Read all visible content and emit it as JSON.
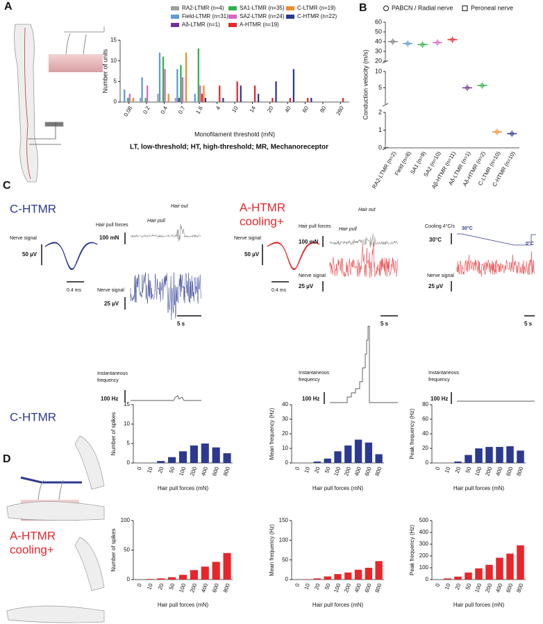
{
  "panel_letters": [
    "A",
    "B",
    "C",
    "D"
  ],
  "panel_a_note": "LT, low-threshold; HT, high-threshold; MR, Mechanoreceptor",
  "panel_c": {
    "c_htmr": {
      "title": [
        "C-HTMR"
      ],
      "nerve_signal": "Nerve signal",
      "amp_scale": "50 µV",
      "time_scale": "0.4 ms",
      "force_label": "Hair pull forces",
      "hair_pull": "Hair pull",
      "hair_out": "Hair out",
      "force_scale": "100 mN",
      "nerve_signal2": "Nerve signal",
      "signal_scale": "25 µV",
      "time_scale2": "5 s",
      "freq_label": [
        "Instantaneous",
        "frequency"
      ],
      "freq_scale": "100 Hz"
    },
    "a_htmr": {
      "title": [
        "A-HTMR",
        "cooling+"
      ],
      "nerve_signal": "Nerve signal",
      "amp_scale": "50 µV",
      "time_scale": "0.4 ms",
      "force_label": "Hair pull forces",
      "hair_pull": "Hair pull",
      "hair_out": "Hair out",
      "force_scale": "100 mN",
      "nerve_signal2": "Nerve signal",
      "signal_scale": "25 µV",
      "time_scale2": "5 s",
      "freq_label": [
        "Instantaneous",
        "frequency"
      ],
      "freq_scale": "100 Hz"
    },
    "cooling": {
      "label": "Cooling 4°C/s",
      "temp_scale": "30°C",
      "start": "30°C",
      "end": "0°C",
      "nerve_signal": "Nerve signal",
      "signal_scale": "25 µV",
      "time_scale": "5 s",
      "freq_label": [
        "Instantaneous",
        "frequency"
      ],
      "freq_scale": "100 Hz"
    }
  },
  "panel_d": {
    "row_labels": [
      [
        "C-HTMR"
      ],
      [
        "A-HTMR",
        "cooling+"
      ]
    ]
  },
  "chart_data": [
    {
      "type": "bar",
      "xlabel": "Monofilament threshold (mN)",
      "ylabel": "Number of units",
      "categories": [
        "0.08",
        "0.2",
        "0.4",
        "0.7",
        "1.6",
        "4",
        "10",
        "14",
        "20",
        "40",
        "60",
        "80",
        "260"
      ],
      "ylim": [
        0,
        15
      ],
      "yticks": [
        0,
        5,
        10,
        15
      ],
      "series": [
        {
          "name": "RA2-LTMR (n=4)",
          "color": "#a0a0a0",
          "values": [
            0,
            1,
            2,
            1,
            0,
            0,
            0,
            0,
            0,
            0,
            0,
            0,
            0
          ]
        },
        {
          "name": "Field-LTMR (n=31)",
          "color": "#5b9bd5",
          "values": [
            3,
            6,
            12,
            8,
            2,
            0,
            0,
            0,
            0,
            0,
            0,
            0,
            0
          ]
        },
        {
          "name": "Aδ-LTMR (n=1)",
          "color": "#7030a0",
          "values": [
            0,
            0,
            0,
            1,
            0,
            0,
            0,
            0,
            0,
            0,
            0,
            0,
            0
          ]
        },
        {
          "name": "SA1-LTMR (n=35)",
          "color": "#2db34a",
          "values": [
            1,
            1,
            11,
            9,
            13,
            0,
            0,
            0,
            0,
            0,
            0,
            0,
            0
          ]
        },
        {
          "name": "SA2-LTMR (n=24)",
          "color": "#d965c6",
          "values": [
            2,
            4,
            8,
            6,
            4,
            0,
            0,
            0,
            0,
            0,
            0,
            0,
            0
          ]
        },
        {
          "name": "A-HTMR (n=19)",
          "color": "#e8262a",
          "values": [
            0,
            0,
            0,
            0,
            2,
            4,
            5,
            4,
            1,
            1,
            1,
            0,
            1
          ]
        },
        {
          "name": "C-LTMR (n=19)",
          "color": "#f28c28",
          "values": [
            1,
            0,
            2,
            12,
            4,
            0,
            0,
            0,
            0,
            0,
            0,
            0,
            0
          ]
        },
        {
          "name": "C-HTMR (n=22)",
          "color": "#2b3990",
          "values": [
            0,
            0,
            0,
            0,
            1,
            1,
            4,
            2,
            5,
            8,
            1,
            0,
            0
          ]
        }
      ]
    },
    {
      "type": "dot",
      "ylabel": "Conduction velocity (m/s)",
      "legend": [
        "PABCN / Radial nerve",
        "Peroneal nerve"
      ],
      "categories": [
        "RA2-LTMR (n=2)",
        "Field (n=8)",
        "SA1 (n=9)",
        "SA2 (n=10)",
        "Aβ-HTMR (n=11)",
        "Aδ-LTMR (n=1)",
        "Aδ-HTMR (n=2)",
        "C-LTMR (n=10)",
        "C-HTMR (n=10)"
      ],
      "values": [
        40,
        38,
        37,
        39,
        42,
        5,
        5.7,
        0.9,
        0.8
      ],
      "colors": [
        "#808080",
        "#5b9bd5",
        "#2db34a",
        "#d965c6",
        "#e8262a",
        "#7030a0",
        "#2db34a",
        "#f28c28",
        "#2b3990"
      ],
      "category_segment": [
        0,
        0,
        0,
        0,
        0,
        1,
        1,
        2,
        2
      ],
      "segments": [
        {
          "ylim": [
            20,
            60
          ],
          "yticks": [
            20,
            30,
            40,
            50,
            60
          ]
        },
        {
          "ylim": [
            0,
            10
          ],
          "yticks": [
            5,
            10
          ]
        },
        {
          "ylim": [
            0,
            2
          ],
          "yticks": [
            0,
            1,
            2
          ]
        }
      ]
    },
    {
      "type": "bar",
      "xlabel": "Hair pull forces (mN)",
      "ylabel": "Number of spikes",
      "color": "#2b3990",
      "categories": [
        "0",
        "10",
        "20",
        "50",
        "100",
        "200",
        "400",
        "600",
        "800"
      ],
      "values": [
        0,
        0,
        0.5,
        1.5,
        3,
        4.5,
        5,
        4,
        2.5
      ],
      "ylim": [
        0,
        15
      ],
      "yticks": [
        0,
        5,
        10,
        15
      ]
    },
    {
      "type": "bar",
      "xlabel": "Hair pull forces (mN)",
      "ylabel": "Mean frequency (Hz)",
      "color": "#2b3990",
      "categories": [
        "0",
        "10",
        "20",
        "50",
        "100",
        "200",
        "400",
        "600",
        "800"
      ],
      "values": [
        0,
        0,
        1,
        3,
        8,
        12,
        16,
        14,
        6
      ],
      "ylim": [
        0,
        40
      ],
      "yticks": [
        0,
        10,
        20,
        30,
        40
      ]
    },
    {
      "type": "bar",
      "xlabel": "Hair pull forces (mN)",
      "ylabel": "Peak frequency (Hz)",
      "color": "#2b3990",
      "categories": [
        "0",
        "10",
        "20",
        "50",
        "100",
        "200",
        "400",
        "600",
        "800"
      ],
      "values": [
        0,
        0,
        2,
        11,
        20,
        22,
        22,
        23,
        17
      ],
      "ylim": [
        0,
        80
      ],
      "yticks": [
        0,
        20,
        40,
        60,
        80
      ]
    },
    {
      "type": "bar",
      "xlabel": "Hair pull forces (mN)",
      "ylabel": "Number of spikes",
      "color": "#e8262a",
      "categories": [
        "0",
        "10",
        "20",
        "50",
        "100",
        "200",
        "400",
        "600",
        "800"
      ],
      "values": [
        0,
        1,
        2,
        4,
        8,
        16,
        22,
        30,
        45
      ],
      "ylim": [
        0,
        100
      ],
      "yticks": [
        0,
        50,
        100
      ]
    },
    {
      "type": "bar",
      "xlabel": "Hair pull forces (mN)",
      "ylabel": "Mean frequency (Hz)",
      "color": "#e8262a",
      "categories": [
        "0",
        "10",
        "20",
        "50",
        "100",
        "200",
        "400",
        "600",
        "800"
      ],
      "values": [
        0,
        1,
        3,
        8,
        14,
        18,
        25,
        30,
        47
      ],
      "ylim": [
        0,
        150
      ],
      "yticks": [
        0,
        50,
        100,
        150
      ]
    },
    {
      "type": "bar",
      "xlabel": "Hair pull forces (mN)",
      "ylabel": "Peak frequency (Hz)",
      "color": "#e8262a",
      "categories": [
        "0",
        "10",
        "20",
        "50",
        "100",
        "200",
        "400",
        "600",
        "800"
      ],
      "values": [
        0,
        10,
        25,
        60,
        95,
        125,
        185,
        220,
        290
      ],
      "ylim": [
        0,
        500
      ],
      "yticks": [
        0,
        100,
        200,
        300,
        400,
        500
      ]
    }
  ]
}
